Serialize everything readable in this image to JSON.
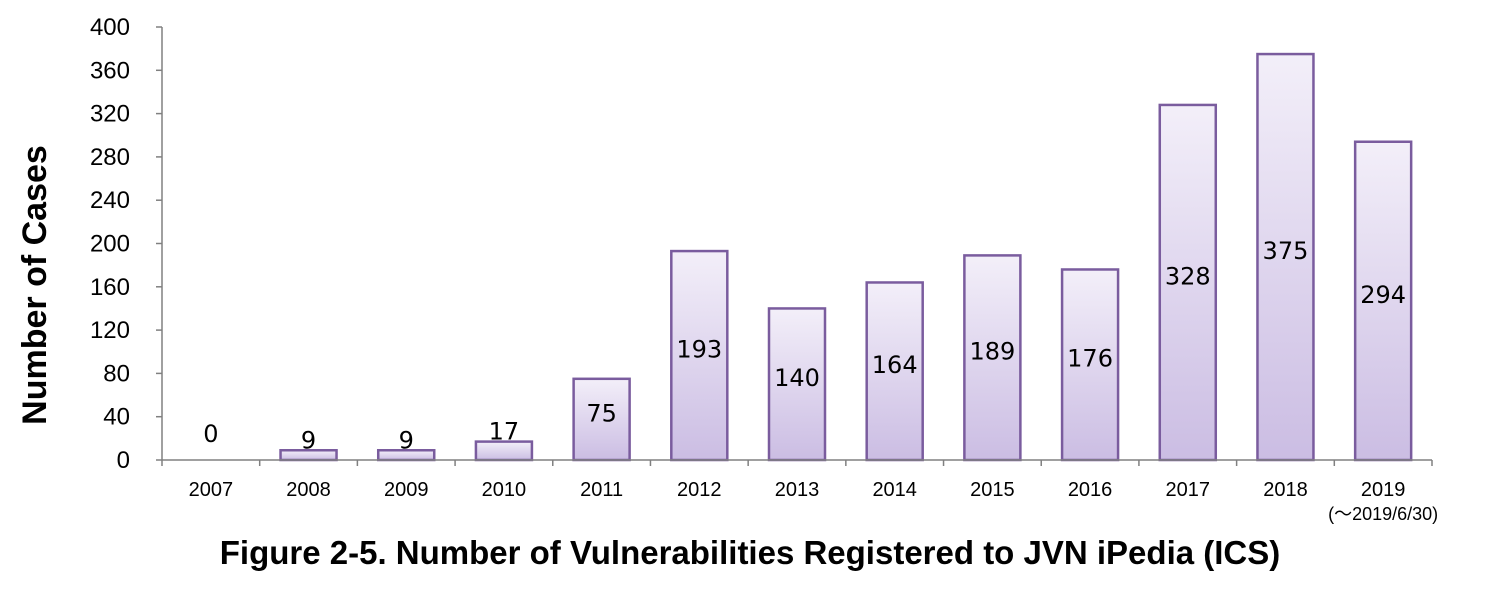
{
  "caption": "Figure 2-5.  Number of Vulnerabilities Registered to JVN iPedia (ICS)",
  "chart_data": {
    "type": "bar",
    "title": "",
    "xlabel": "",
    "ylabel": "Number of Cases",
    "ylim": [
      0,
      400
    ],
    "yticks": [
      0,
      40,
      80,
      120,
      160,
      200,
      240,
      280,
      320,
      360,
      400
    ],
    "categories": [
      "2007",
      "2008",
      "2009",
      "2010",
      "2011",
      "2012",
      "2013",
      "2014",
      "2015",
      "2016",
      "2017",
      "2018",
      "2019"
    ],
    "category_note": {
      "index": 12,
      "text": "(～2019/6/30)"
    },
    "values": [
      0,
      9,
      9,
      17,
      75,
      193,
      140,
      164,
      189,
      176,
      328,
      375,
      294
    ],
    "grid": false,
    "legend": "none",
    "colors": {
      "bar_top": "#f3eff9",
      "bar_bottom": "#cbbde3",
      "bar_stroke": "#7a5c9e",
      "axis": "#808080"
    }
  }
}
